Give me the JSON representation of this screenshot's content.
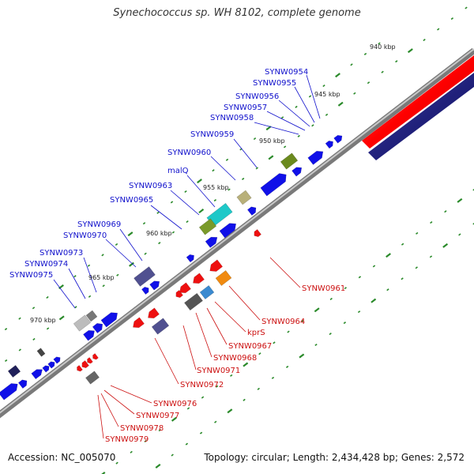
{
  "title": "Synechococcus sp. WH 8102, complete genome",
  "footer": {
    "accession": "Accession: NC_005070",
    "summary": "Topology: circular; Length: 2,434,428 bp; Genes: 2,572"
  },
  "colors": {
    "forward_gene": "#1010e8",
    "reverse_gene": "#ee1010",
    "backbone": "#888888",
    "tick": "#2a8a2a",
    "track_red": "#ff1a1a",
    "track_blue": "#10106e"
  },
  "ticks": [
    "940 kbp",
    "945 kbp",
    "950 kbp",
    "955 kbp",
    "960 kbp",
    "965 kbp",
    "970 kbp"
  ],
  "labels_top": [
    "SYNW0954",
    "SYNW0955",
    "SYNW0956",
    "SYNW0957",
    "SYNW0958",
    "SYNW0959",
    "SYNW0960",
    "malQ",
    "SYNW0963",
    "SYNW0965",
    "SYNW0969",
    "SYNW0970",
    "SYNW0973",
    "SYNW0974",
    "SYNW0975"
  ],
  "labels_bottom": [
    "SYNW0961",
    "SYNW0964",
    "kprS",
    "SYNW0967",
    "SYNW0968",
    "SYNW0971",
    "SYNW0972",
    "SYNW0976",
    "SYNW0977",
    "SYNW0978",
    "SYNW0979"
  ]
}
